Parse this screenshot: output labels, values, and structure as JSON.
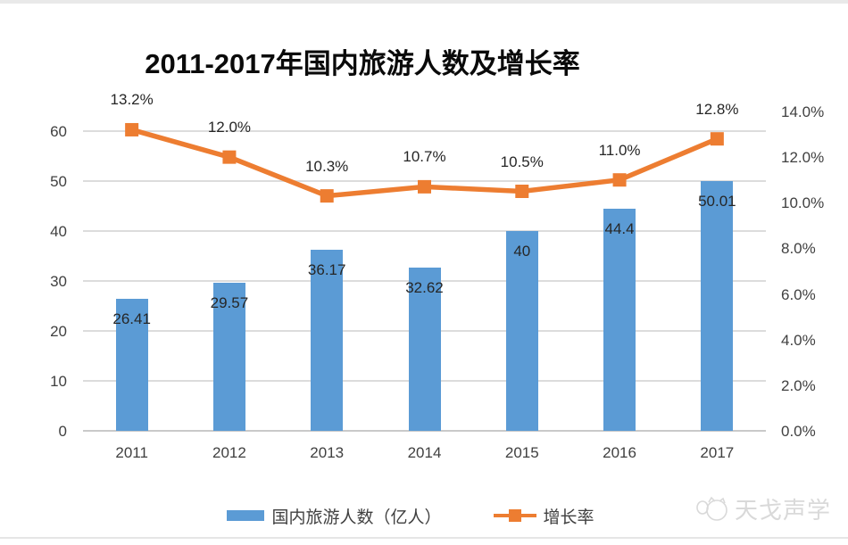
{
  "title": "2011-2017年国内旅游人数及增长率",
  "legend": {
    "items": [
      {
        "label": "国内旅游人数（亿人）",
        "swatch": "bar-swatch",
        "color": "#5B9BD5"
      },
      {
        "label": "增长率",
        "swatch": "line-swatch",
        "color": "#ED7D31"
      }
    ]
  },
  "watermark": {
    "text": "天戈声学",
    "icon": "tiange-logo-icon"
  },
  "colors": {
    "bar": "#5B9BD5",
    "line": "#ED7D31",
    "gridline": "#dcdcdc",
    "axis_text": "#404040",
    "data_label_text": "#262626",
    "title_text": "#0a0a0a",
    "watermark_text": "#d9d9d9"
  },
  "chart_data": {
    "type": "bar",
    "subtype": "combo-bar-line",
    "title": "2011-2017年国内旅游人数及增长率",
    "categories": [
      "2011",
      "2012",
      "2013",
      "2014",
      "2015",
      "2016",
      "2017"
    ],
    "series": [
      {
        "name": "国内旅游人数（亿人）",
        "type": "bar",
        "axis": "left",
        "color": "#5B9BD5",
        "values": [
          26.41,
          29.57,
          36.17,
          32.62,
          40,
          44.4,
          50.01
        ],
        "labels": [
          "26.41",
          "29.57",
          "36.17",
          "32.62",
          "40",
          "44.4",
          "50.01"
        ]
      },
      {
        "name": "增长率",
        "type": "line",
        "axis": "right",
        "color": "#ED7D31",
        "values": [
          13.2,
          12.0,
          10.3,
          10.7,
          10.5,
          11.0,
          12.8
        ],
        "labels": [
          "13.2%",
          "12.0%",
          "10.3%",
          "10.7%",
          "10.5%",
          "11.0%",
          "12.8%"
        ]
      }
    ],
    "left_axis": {
      "min": 0,
      "max": 60,
      "step": 10,
      "ticks": [
        "0",
        "10",
        "20",
        "30",
        "40",
        "50",
        "60"
      ]
    },
    "right_axis": {
      "min": 0,
      "max": 14,
      "step": 2,
      "ticks": [
        "0.0%",
        "2.0%",
        "4.0%",
        "6.0%",
        "8.0%",
        "10.0%",
        "12.0%",
        "14.0%"
      ]
    },
    "grid": true,
    "legend_position": "bottom",
    "xlabel": "",
    "ylabel_left": "",
    "ylabel_right": ""
  }
}
